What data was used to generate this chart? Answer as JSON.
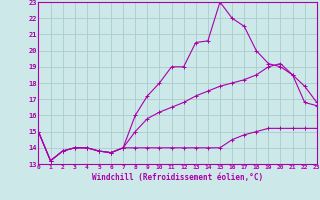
{
  "xlabel": "Windchill (Refroidissement éolien,°C)",
  "background_color": "#cce8e8",
  "grid_color": "#aacccc",
  "line_color": "#aa00aa",
  "x_hours": [
    0,
    1,
    2,
    3,
    4,
    5,
    6,
    7,
    8,
    9,
    10,
    11,
    12,
    13,
    14,
    15,
    16,
    17,
    18,
    19,
    20,
    21,
    22,
    23
  ],
  "series1": [
    15,
    13.2,
    13.8,
    14.0,
    14.0,
    13.8,
    13.7,
    14.0,
    14.0,
    14.0,
    14.0,
    14.0,
    14.0,
    14.0,
    14.0,
    14.0,
    14.5,
    14.8,
    15.0,
    15.2,
    15.2,
    15.2,
    15.2,
    15.2
  ],
  "series2": [
    15,
    13.2,
    13.8,
    14.0,
    14.0,
    13.8,
    13.7,
    14.0,
    15.0,
    15.8,
    16.2,
    16.5,
    16.8,
    17.2,
    17.5,
    17.8,
    18.0,
    18.2,
    18.5,
    19.0,
    19.2,
    18.5,
    17.8,
    16.8
  ],
  "series3": [
    15,
    13.2,
    13.8,
    14.0,
    14.0,
    13.8,
    13.7,
    14.0,
    16.0,
    17.2,
    18.0,
    19.0,
    19.0,
    20.5,
    20.6,
    23.0,
    22.0,
    21.5,
    20.0,
    19.2,
    19.0,
    18.5,
    16.8,
    16.6
  ],
  "ylim": [
    13,
    23
  ],
  "xlim": [
    0,
    23
  ],
  "yticks": [
    13,
    14,
    15,
    16,
    17,
    18,
    19,
    20,
    21,
    22,
    23
  ],
  "xticks": [
    0,
    1,
    2,
    3,
    4,
    5,
    6,
    7,
    8,
    9,
    10,
    11,
    12,
    13,
    14,
    15,
    16,
    17,
    18,
    19,
    20,
    21,
    22,
    23
  ]
}
